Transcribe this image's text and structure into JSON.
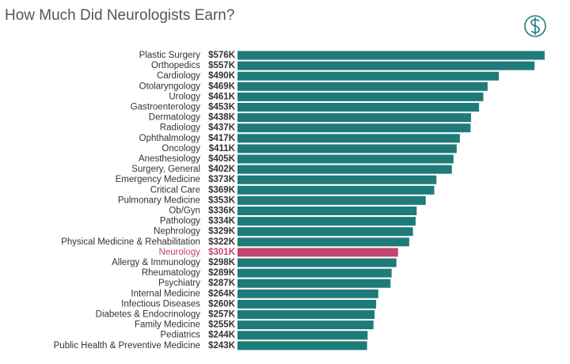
{
  "chart_data": {
    "type": "bar",
    "orientation": "horizontal",
    "title": "How Much Did Neurologists Earn?",
    "categories": [
      "Plastic Surgery",
      "Orthopedics",
      "Cardiology",
      "Otolaryngology",
      "Urology",
      "Gastroenterology",
      "Dermatology",
      "Radiology",
      "Ophthalmology",
      "Oncology",
      "Anesthesiology",
      "Surgery, General",
      "Emergency Medicine",
      "Critical Care",
      "Pulmonary Medicine",
      "Ob/Gyn",
      "Pathology",
      "Nephrology",
      "Physical Medicine & Rehabilitation",
      "Neurology",
      "Allergy & Immunology",
      "Rheumatology",
      "Psychiatry",
      "Internal Medicine",
      "Infectious Diseases",
      "Diabetes & Endocrinology",
      "Family Medicine",
      "Pediatrics",
      "Public Health & Preventive Medicine"
    ],
    "values": [
      576,
      557,
      490,
      469,
      461,
      453,
      438,
      437,
      417,
      411,
      405,
      402,
      373,
      369,
      353,
      336,
      334,
      329,
      322,
      301,
      298,
      289,
      287,
      264,
      260,
      257,
      255,
      244,
      243
    ],
    "value_labels": [
      "$576K",
      "$557K",
      "$490K",
      "$469K",
      "$461K",
      "$453K",
      "$438K",
      "$437K",
      "$417K",
      "$411K",
      "$405K",
      "$402K",
      "$373K",
      "$369K",
      "$353K",
      "$336K",
      "$334K",
      "$329K",
      "$322K",
      "$301K",
      "$298K",
      "$289K",
      "$287K",
      "$264K",
      "$260K",
      "$257K",
      "$255K",
      "$244K",
      "$243K"
    ],
    "colors": [
      "#1e7b7a",
      "#1e7b7a",
      "#1e7b7a",
      "#1e7b7a",
      "#1e7b7a",
      "#1e7b7a",
      "#1e7b7a",
      "#1e7b7a",
      "#1e7b7a",
      "#1e7b7a",
      "#1e7b7a",
      "#1e7b7a",
      "#1e7b7a",
      "#1e7b7a",
      "#1e7b7a",
      "#1e7b7a",
      "#1e7b7a",
      "#1e7b7a",
      "#1e7b7a",
      "#c0466e",
      "#1e7b7a",
      "#1e7b7a",
      "#1e7b7a",
      "#1e7b7a",
      "#1e7b7a",
      "#1e7b7a",
      "#1e7b7a",
      "#1e7b7a",
      "#1e7b7a"
    ]
  }
}
